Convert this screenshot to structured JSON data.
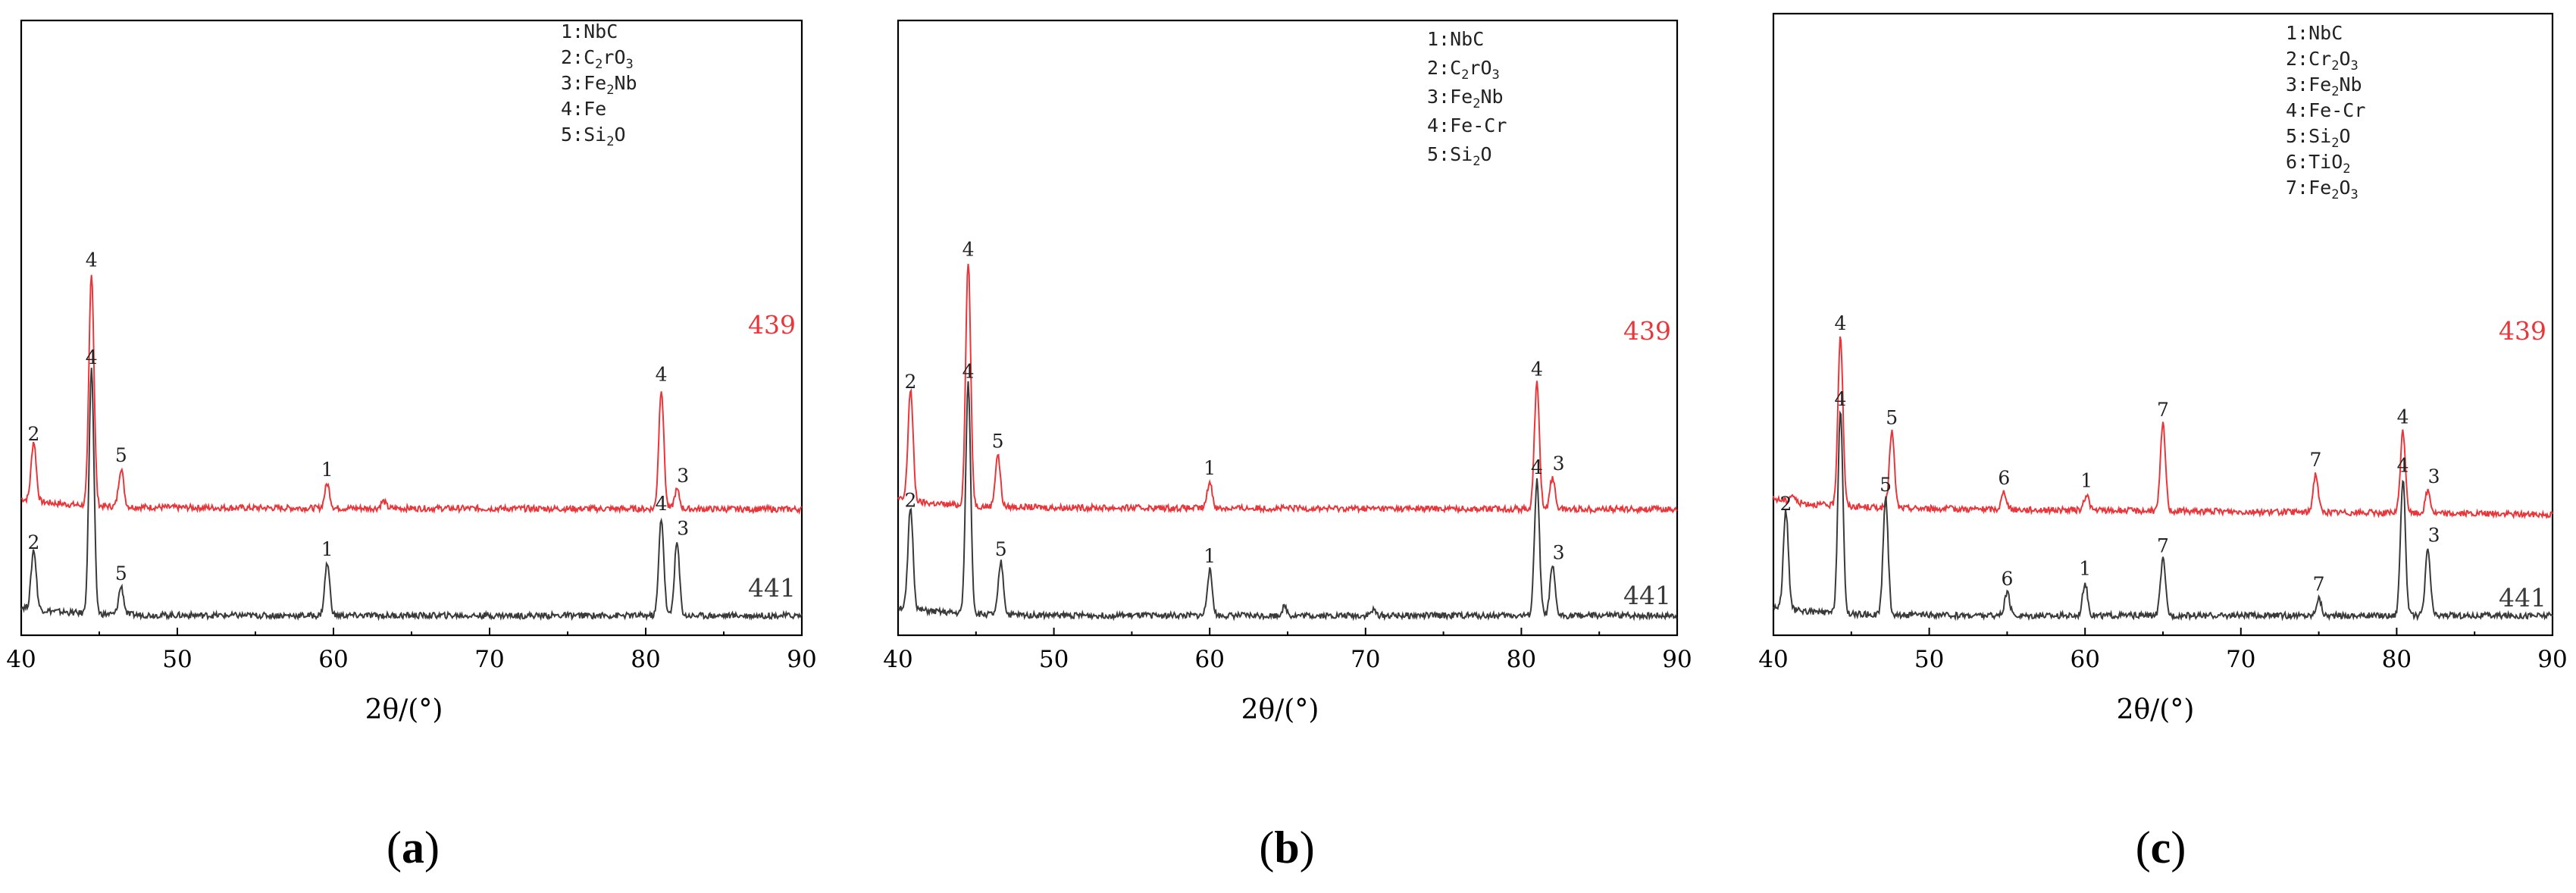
{
  "chart_data": [
    {
      "type": "line",
      "panel": "a",
      "xlabel": "2θ/(°)",
      "ylabel": "",
      "xlim": [
        40,
        90
      ],
      "xticks": [
        "40",
        "50",
        "60",
        "70",
        "80",
        "90"
      ],
      "sub_label": {
        "open": "(",
        "letter": "a",
        "close": ")"
      },
      "legend": [
        {
          "num": "1:",
          "phase": [
            [
              "NbC",
              ""
            ]
          ]
        },
        {
          "num": "2:",
          "phase": [
            [
              "C",
              ""
            ],
            [
              "2",
              "sub"
            ],
            [
              "rO",
              ""
            ],
            [
              "3",
              "sub"
            ]
          ]
        },
        {
          "num": "3:",
          "phase": [
            [
              "Fe",
              ""
            ],
            [
              "2",
              "sub"
            ],
            [
              "Nb",
              ""
            ]
          ]
        },
        {
          "num": "4:",
          "phase": [
            [
              "Fe",
              ""
            ]
          ]
        },
        {
          "num": "5:",
          "phase": [
            [
              "Si",
              ""
            ],
            [
              "2",
              "sub"
            ],
            [
              "O",
              ""
            ]
          ]
        }
      ],
      "series": [
        {
          "name": "439",
          "color": "#e8363a",
          "baseline": 0.62,
          "end": 0.61,
          "peaks": [
            {
              "x": 40.8,
              "h": 0.34,
              "label": "2"
            },
            {
              "x": 44.5,
              "h": 1.34,
              "label": "4"
            },
            {
              "x": 46.4,
              "h": 0.22,
              "label": "5"
            },
            {
              "x": 59.6,
              "h": 0.14,
              "label": "1"
            },
            {
              "x": 63.2,
              "h": 0.04,
              "label": ""
            },
            {
              "x": 81.0,
              "h": 0.69,
              "label": "4"
            },
            {
              "x": 82.0,
              "h": 0.11,
              "label": "3"
            }
          ]
        },
        {
          "name": "441",
          "color": "#3a3a3a",
          "baseline": 0.0,
          "end": 0.0,
          "peaks": [
            {
              "x": 40.8,
              "h": 0.34,
              "label": "2"
            },
            {
              "x": 44.5,
              "h": 1.4,
              "label": "4"
            },
            {
              "x": 46.4,
              "h": 0.16,
              "label": "5"
            },
            {
              "x": 59.6,
              "h": 0.3,
              "label": "1"
            },
            {
              "x": 81.0,
              "h": 0.56,
              "label": "4"
            },
            {
              "x": 82.0,
              "h": 0.42,
              "label": "3"
            }
          ]
        }
      ]
    },
    {
      "type": "line",
      "panel": "b",
      "xlabel": "2θ/(°)",
      "ylabel": "",
      "xlim": [
        40,
        90
      ],
      "xticks": [
        "40",
        "50",
        "60",
        "70",
        "80",
        "90"
      ],
      "sub_label": {
        "open": "(",
        "letter": "b",
        "close": ")"
      },
      "legend": [
        {
          "num": "1:",
          "phase": [
            [
              "NbC",
              ""
            ]
          ]
        },
        {
          "num": "2:",
          "phase": [
            [
              "C",
              ""
            ],
            [
              "2",
              "sub"
            ],
            [
              "rO",
              ""
            ],
            [
              "3",
              "sub"
            ]
          ]
        },
        {
          "num": "3:",
          "phase": [
            [
              "Fe",
              ""
            ],
            [
              "2",
              "sub"
            ],
            [
              "Nb",
              ""
            ]
          ]
        },
        {
          "num": "4:",
          "phase": [
            [
              "Fe-Cr",
              ""
            ]
          ]
        },
        {
          "num": "5:",
          "phase": [
            [
              "Si",
              ""
            ],
            [
              "2",
              "sub"
            ],
            [
              "O",
              ""
            ]
          ]
        }
      ],
      "series": [
        {
          "name": "439",
          "color": "#e8363a",
          "baseline": 0.62,
          "end": 0.61,
          "peaks": [
            {
              "x": 40.8,
              "h": 0.64,
              "label": "2"
            },
            {
              "x": 44.5,
              "h": 1.4,
              "label": "4"
            },
            {
              "x": 46.4,
              "h": 0.3,
              "label": "5"
            },
            {
              "x": 60.0,
              "h": 0.15,
              "label": "1"
            },
            {
              "x": 81.0,
              "h": 0.72,
              "label": "4"
            },
            {
              "x": 82.0,
              "h": 0.18,
              "label": "3"
            }
          ]
        },
        {
          "name": "441",
          "color": "#3a3a3a",
          "baseline": 0.0,
          "end": 0.0,
          "peaks": [
            {
              "x": 40.8,
              "h": 0.58,
              "label": "2"
            },
            {
              "x": 44.5,
              "h": 1.32,
              "label": "4"
            },
            {
              "x": 46.6,
              "h": 0.3,
              "label": "5"
            },
            {
              "x": 60.0,
              "h": 0.26,
              "label": "1"
            },
            {
              "x": 64.8,
              "h": 0.05,
              "label": ""
            },
            {
              "x": 70.5,
              "h": 0.03,
              "label": ""
            },
            {
              "x": 81.0,
              "h": 0.77,
              "label": "4"
            },
            {
              "x": 82.0,
              "h": 0.28,
              "label": "3"
            }
          ]
        }
      ]
    },
    {
      "type": "line",
      "panel": "c",
      "xlabel": "2θ/(°)",
      "ylabel": "",
      "xlim": [
        40,
        90
      ],
      "xticks": [
        "40",
        "50",
        "60",
        "70",
        "80",
        "90"
      ],
      "sub_label": {
        "open": "(",
        "letter": "c",
        "close": ")"
      },
      "legend": [
        {
          "num": "1:",
          "phase": [
            [
              "NbC",
              ""
            ]
          ]
        },
        {
          "num": "2:",
          "phase": [
            [
              "Cr",
              ""
            ],
            [
              "2",
              "sub"
            ],
            [
              "O",
              ""
            ],
            [
              "3",
              "sub"
            ]
          ]
        },
        {
          "num": "3:",
          "phase": [
            [
              "Fe",
              ""
            ],
            [
              "2",
              "sub"
            ],
            [
              "Nb",
              ""
            ]
          ]
        },
        {
          "num": "4:",
          "phase": [
            [
              "Fe-Cr",
              ""
            ]
          ]
        },
        {
          "num": "5:",
          "phase": [
            [
              "Si",
              ""
            ],
            [
              "2",
              "sub"
            ],
            [
              "O",
              ""
            ]
          ]
        },
        {
          "num": "6:",
          "phase": [
            [
              "TiO",
              ""
            ],
            [
              "2",
              "sub"
            ]
          ]
        },
        {
          "num": "7:",
          "phase": [
            [
              "Fe",
              ""
            ],
            [
              "2",
              "sub"
            ],
            [
              "O",
              ""
            ],
            [
              "3",
              "sub"
            ]
          ]
        }
      ],
      "series": [
        {
          "name": "439",
          "color": "#e8363a",
          "baseline": 0.62,
          "end": 0.58,
          "peaks": [
            {
              "x": 41.2,
              "h": 0.04,
              "label": ""
            },
            {
              "x": 44.3,
              "h": 0.98,
              "label": "4"
            },
            {
              "x": 47.6,
              "h": 0.44,
              "label": "5"
            },
            {
              "x": 54.8,
              "h": 0.1,
              "label": "6"
            },
            {
              "x": 60.1,
              "h": 0.09,
              "label": "1"
            },
            {
              "x": 65.0,
              "h": 0.5,
              "label": "7"
            },
            {
              "x": 74.8,
              "h": 0.22,
              "label": "7"
            },
            {
              "x": 80.4,
              "h": 0.47,
              "label": "4"
            },
            {
              "x": 82.0,
              "h": 0.13,
              "label": "3"
            }
          ]
        },
        {
          "name": "441",
          "color": "#3a3a3a",
          "baseline": 0.0,
          "end": 0.0,
          "peaks": [
            {
              "x": 40.8,
              "h": 0.56,
              "label": "2"
            },
            {
              "x": 44.3,
              "h": 1.16,
              "label": "4"
            },
            {
              "x": 47.2,
              "h": 0.67,
              "label": "5"
            },
            {
              "x": 55.0,
              "h": 0.13,
              "label": "6"
            },
            {
              "x": 60.0,
              "h": 0.19,
              "label": "1"
            },
            {
              "x": 65.0,
              "h": 0.32,
              "label": "7"
            },
            {
              "x": 75.0,
              "h": 0.1,
              "label": "7"
            },
            {
              "x": 80.4,
              "h": 0.78,
              "label": "4"
            },
            {
              "x": 82.0,
              "h": 0.38,
              "label": "3"
            }
          ]
        }
      ]
    }
  ]
}
